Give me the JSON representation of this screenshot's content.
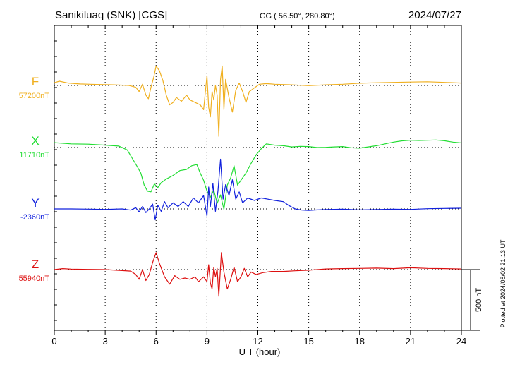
{
  "header": {
    "station": "Sanikiluaq (SNK)  [CGS]",
    "coords": "GG ( 56.50°, 280.80°)",
    "date": "2024/07/27"
  },
  "footer": {
    "plotted": "Plotted at 2024/08/02 21:13 UT"
  },
  "chart_data": {
    "type": "line",
    "title": "",
    "xlabel": "U T (hour)",
    "ylabel": "",
    "xlim": [
      0,
      24
    ],
    "xticks": [
      "0",
      "3",
      "6",
      "9",
      "12",
      "15",
      "18",
      "21",
      "24"
    ],
    "grid": true,
    "scale_bar": {
      "value": 500,
      "label": "500 nT"
    },
    "series": [
      {
        "name": "F",
        "baseline_label": "57200nT",
        "baseline": 57200,
        "color": "#f0b020",
        "points": [
          [
            0,
            57222
          ],
          [
            0.3,
            57235
          ],
          [
            0.8,
            57220
          ],
          [
            1.5,
            57212
          ],
          [
            2.5,
            57208
          ],
          [
            3.5,
            57205
          ],
          [
            4.4,
            57200
          ],
          [
            4.8,
            57185
          ],
          [
            5.0,
            57150
          ],
          [
            5.2,
            57210
          ],
          [
            5.4,
            57120
          ],
          [
            5.55,
            57090
          ],
          [
            5.7,
            57185
          ],
          [
            5.85,
            57260
          ],
          [
            6.0,
            57360
          ],
          [
            6.2,
            57320
          ],
          [
            6.4,
            57240
          ],
          [
            6.6,
            57120
          ],
          [
            6.8,
            57040
          ],
          [
            7.0,
            57060
          ],
          [
            7.2,
            57100
          ],
          [
            7.5,
            57070
          ],
          [
            7.8,
            57120
          ],
          [
            8.0,
            57080
          ],
          [
            8.3,
            57060
          ],
          [
            8.6,
            57040
          ],
          [
            8.8,
            57000
          ],
          [
            9.0,
            57280
          ],
          [
            9.1,
            57020
          ],
          [
            9.2,
            56940
          ],
          [
            9.3,
            57150
          ],
          [
            9.4,
            57080
          ],
          [
            9.5,
            57200
          ],
          [
            9.6,
            57120
          ],
          [
            9.7,
            56780
          ],
          [
            9.8,
            57250
          ],
          [
            9.9,
            57360
          ],
          [
            10.0,
            57000
          ],
          [
            10.1,
            57250
          ],
          [
            10.3,
            57100
          ],
          [
            10.5,
            56980
          ],
          [
            10.7,
            57160
          ],
          [
            10.9,
            57220
          ],
          [
            11.1,
            57150
          ],
          [
            11.3,
            57060
          ],
          [
            11.5,
            57150
          ],
          [
            11.8,
            57180
          ],
          [
            12.1,
            57210
          ],
          [
            12.5,
            57215
          ],
          [
            13.0,
            57210
          ],
          [
            14.0,
            57205
          ],
          [
            15.0,
            57198
          ],
          [
            16.0,
            57205
          ],
          [
            17.0,
            57210
          ],
          [
            18.0,
            57218
          ],
          [
            19.0,
            57222
          ],
          [
            20.0,
            57225
          ],
          [
            21.0,
            57228
          ],
          [
            22.0,
            57230
          ],
          [
            23.0,
            57225
          ],
          [
            24.0,
            57220
          ]
        ]
      },
      {
        "name": "X",
        "baseline_label": "11710nT",
        "baseline": 11710,
        "color": "#22dd33",
        "points": [
          [
            0,
            11750
          ],
          [
            1,
            11740
          ],
          [
            2,
            11738
          ],
          [
            3,
            11730
          ],
          [
            3.8,
            11722
          ],
          [
            4.3,
            11690
          ],
          [
            4.6,
            11620
          ],
          [
            4.9,
            11550
          ],
          [
            5.1,
            11500
          ],
          [
            5.3,
            11400
          ],
          [
            5.5,
            11350
          ],
          [
            5.7,
            11345
          ],
          [
            5.9,
            11410
          ],
          [
            6.1,
            11380
          ],
          [
            6.3,
            11420
          ],
          [
            6.6,
            11450
          ],
          [
            7.0,
            11480
          ],
          [
            7.4,
            11520
          ],
          [
            7.8,
            11530
          ],
          [
            8.1,
            11560
          ],
          [
            8.4,
            11570
          ],
          [
            8.6,
            11500
          ],
          [
            8.8,
            11440
          ],
          [
            9.0,
            11350
          ],
          [
            9.2,
            11300
          ],
          [
            9.4,
            11360
          ],
          [
            9.6,
            11250
          ],
          [
            9.8,
            11320
          ],
          [
            10.0,
            11200
          ],
          [
            10.2,
            11400
          ],
          [
            10.4,
            11460
          ],
          [
            10.6,
            11560
          ],
          [
            10.8,
            11400
          ],
          [
            11.0,
            11440
          ],
          [
            11.3,
            11500
          ],
          [
            11.6,
            11580
          ],
          [
            11.9,
            11650
          ],
          [
            12.2,
            11700
          ],
          [
            12.5,
            11740
          ],
          [
            13.0,
            11730
          ],
          [
            13.5,
            11725
          ],
          [
            14.0,
            11715
          ],
          [
            14.5,
            11720
          ],
          [
            15.0,
            11718
          ],
          [
            15.5,
            11710
          ],
          [
            16.0,
            11712
          ],
          [
            16.5,
            11715
          ],
          [
            17.0,
            11718
          ],
          [
            17.5,
            11708
          ],
          [
            18.0,
            11705
          ],
          [
            18.5,
            11715
          ],
          [
            19.0,
            11725
          ],
          [
            19.5,
            11740
          ],
          [
            20.0,
            11755
          ],
          [
            20.5,
            11765
          ],
          [
            21.0,
            11770
          ],
          [
            21.5,
            11768
          ],
          [
            22.0,
            11770
          ],
          [
            22.5,
            11772
          ],
          [
            23.0,
            11766
          ],
          [
            23.5,
            11755
          ],
          [
            24.0,
            11748
          ]
        ]
      },
      {
        "name": "Y",
        "baseline_label": "-2360nT",
        "baseline": -2360,
        "color": "#1020dd",
        "points": [
          [
            0,
            -2360
          ],
          [
            1,
            -2360
          ],
          [
            2,
            -2362
          ],
          [
            3,
            -2364
          ],
          [
            4,
            -2360
          ],
          [
            4.5,
            -2370
          ],
          [
            4.8,
            -2350
          ],
          [
            5.0,
            -2385
          ],
          [
            5.2,
            -2340
          ],
          [
            5.4,
            -2390
          ],
          [
            5.6,
            -2360
          ],
          [
            5.8,
            -2320
          ],
          [
            5.95,
            -2450
          ],
          [
            6.1,
            -2330
          ],
          [
            6.3,
            -2380
          ],
          [
            6.5,
            -2300
          ],
          [
            6.7,
            -2350
          ],
          [
            7.0,
            -2310
          ],
          [
            7.3,
            -2340
          ],
          [
            7.6,
            -2300
          ],
          [
            7.9,
            -2340
          ],
          [
            8.2,
            -2270
          ],
          [
            8.5,
            -2310
          ],
          [
            8.8,
            -2250
          ],
          [
            9.0,
            -2420
          ],
          [
            9.1,
            -2180
          ],
          [
            9.2,
            -2340
          ],
          [
            9.35,
            -2150
          ],
          [
            9.5,
            -2380
          ],
          [
            9.65,
            -2210
          ],
          [
            9.8,
            -1950
          ],
          [
            9.95,
            -2280
          ],
          [
            10.1,
            -2160
          ],
          [
            10.3,
            -2250
          ],
          [
            10.5,
            -2120
          ],
          [
            10.7,
            -2280
          ],
          [
            10.9,
            -2220
          ],
          [
            11.1,
            -2310
          ],
          [
            11.4,
            -2270
          ],
          [
            11.8,
            -2290
          ],
          [
            12.2,
            -2270
          ],
          [
            12.6,
            -2280
          ],
          [
            13.0,
            -2290
          ],
          [
            13.5,
            -2300
          ],
          [
            13.8,
            -2330
          ],
          [
            14.2,
            -2360
          ],
          [
            14.6,
            -2370
          ],
          [
            15.0,
            -2372
          ],
          [
            15.5,
            -2368
          ],
          [
            16.0,
            -2365
          ],
          [
            17.0,
            -2362
          ],
          [
            18.0,
            -2368
          ],
          [
            19.0,
            -2365
          ],
          [
            20.0,
            -2362
          ],
          [
            21.0,
            -2364
          ],
          [
            22.0,
            -2358
          ],
          [
            23.0,
            -2356
          ],
          [
            24.0,
            -2354
          ]
        ]
      },
      {
        "name": "Z",
        "baseline_label": "55940nT",
        "baseline": 55940,
        "color": "#dd1010",
        "points": [
          [
            0,
            55940
          ],
          [
            0.5,
            55948
          ],
          [
            1,
            55944
          ],
          [
            2,
            55942
          ],
          [
            3,
            55940
          ],
          [
            4,
            55932
          ],
          [
            4.5,
            55928
          ],
          [
            4.8,
            55900
          ],
          [
            5.0,
            55860
          ],
          [
            5.2,
            55940
          ],
          [
            5.4,
            55850
          ],
          [
            5.6,
            55900
          ],
          [
            5.8,
            56000
          ],
          [
            6.0,
            56080
          ],
          [
            6.2,
            55990
          ],
          [
            6.5,
            55880
          ],
          [
            6.8,
            55820
          ],
          [
            7.1,
            55890
          ],
          [
            7.4,
            55860
          ],
          [
            7.7,
            55870
          ],
          [
            8.0,
            55860
          ],
          [
            8.3,
            55880
          ],
          [
            8.5,
            55840
          ],
          [
            8.8,
            55880
          ],
          [
            9.0,
            55840
          ],
          [
            9.1,
            55980
          ],
          [
            9.2,
            55830
          ],
          [
            9.3,
            55780
          ],
          [
            9.4,
            55960
          ],
          [
            9.5,
            55880
          ],
          [
            9.6,
            55950
          ],
          [
            9.7,
            55720
          ],
          [
            9.85,
            56080
          ],
          [
            10.0,
            55920
          ],
          [
            10.2,
            55780
          ],
          [
            10.4,
            55860
          ],
          [
            10.6,
            55960
          ],
          [
            10.8,
            55840
          ],
          [
            11.0,
            55880
          ],
          [
            11.2,
            55950
          ],
          [
            11.4,
            55880
          ],
          [
            11.6,
            55920
          ],
          [
            11.9,
            55900
          ],
          [
            12.3,
            55915
          ],
          [
            12.8,
            55925
          ],
          [
            13.5,
            55925
          ],
          [
            14.2,
            55930
          ],
          [
            15.0,
            55935
          ],
          [
            16.0,
            55945
          ],
          [
            17.0,
            55948
          ],
          [
            18.0,
            55950
          ],
          [
            19.0,
            55952
          ],
          [
            20.0,
            55948
          ],
          [
            21.0,
            55955
          ],
          [
            22.0,
            55950
          ],
          [
            23.0,
            55948
          ],
          [
            24.0,
            55945
          ]
        ]
      }
    ]
  }
}
